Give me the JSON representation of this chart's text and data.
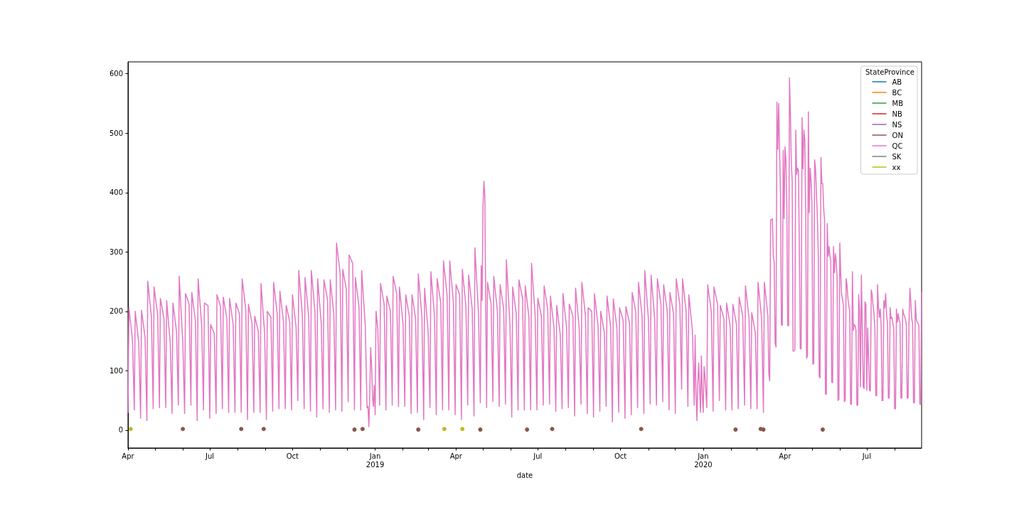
{
  "chart_data": {
    "type": "line",
    "xlabel": "date",
    "legend_title": "StateProvince",
    "legend": "top right",
    "xlim": [
      "2018-04-01",
      "2020-08-31"
    ],
    "xticks": [
      {
        "value": "2018-04-01",
        "label": "Apr"
      },
      {
        "value": "2018-05-01",
        "label": null
      },
      {
        "value": "2018-06-01",
        "label": null
      },
      {
        "value": "2018-07-01",
        "label": "Jul"
      },
      {
        "value": "2018-08-01",
        "label": null
      },
      {
        "value": "2018-09-01",
        "label": null
      },
      {
        "value": "2018-10-01",
        "label": "Oct"
      },
      {
        "value": "2018-11-01",
        "label": null
      },
      {
        "value": "2018-12-01",
        "label": null
      },
      {
        "value": "2019-01-01",
        "label": "Jan\n2019"
      },
      {
        "value": "2019-02-01",
        "label": null
      },
      {
        "value": "2019-03-01",
        "label": null
      },
      {
        "value": "2019-04-01",
        "label": "Apr"
      },
      {
        "value": "2019-05-01",
        "label": null
      },
      {
        "value": "2019-06-01",
        "label": null
      },
      {
        "value": "2019-07-01",
        "label": "Jul"
      },
      {
        "value": "2019-08-01",
        "label": null
      },
      {
        "value": "2019-09-01",
        "label": null
      },
      {
        "value": "2019-10-01",
        "label": "Oct"
      },
      {
        "value": "2019-11-01",
        "label": null
      },
      {
        "value": "2019-12-01",
        "label": null
      },
      {
        "value": "2020-01-01",
        "label": "Jan\n2020"
      },
      {
        "value": "2020-02-01",
        "label": null
      },
      {
        "value": "2020-03-01",
        "label": null
      },
      {
        "value": "2020-04-01",
        "label": "Apr"
      },
      {
        "value": "2020-05-01",
        "label": null
      },
      {
        "value": "2020-06-01",
        "label": null
      },
      {
        "value": "2020-07-01",
        "label": "Jul"
      },
      {
        "value": "2020-08-01",
        "label": null
      }
    ],
    "ylim": [
      -30,
      620
    ],
    "yticks": [
      0,
      100,
      200,
      300,
      400,
      500,
      600
    ],
    "series": [
      {
        "name": "AB",
        "color": "#1f77b4"
      },
      {
        "name": "BC",
        "color": "#ff7f0e"
      },
      {
        "name": "MB",
        "color": "#2ca02c"
      },
      {
        "name": "NB",
        "color": "#d62728"
      },
      {
        "name": "NS",
        "color": "#9467bd"
      },
      {
        "name": "ON",
        "type": "scatter",
        "color": "#8c564b",
        "x": [
          "2018-06-01",
          "2018-08-05",
          "2018-08-30",
          "2018-12-09",
          "2018-12-18",
          "2019-02-18",
          "2019-04-28",
          "2019-06-19",
          "2019-07-17",
          "2019-10-24",
          "2020-02-06",
          "2020-03-05",
          "2020-03-08",
          "2020-05-13"
        ],
        "values": [
          2,
          2,
          2,
          1,
          2,
          1,
          1,
          1,
          2,
          2,
          1,
          2,
          1,
          1
        ]
      },
      {
        "name": "QC",
        "color": "#e377c2",
        "x": [
          "2018-04-01",
          "2018-04-02",
          "2018-04-06",
          "2018-04-08",
          "2018-04-09",
          "2018-04-13",
          "2018-04-15",
          "2018-04-16",
          "2018-04-20",
          "2018-04-22",
          "2018-04-23",
          "2018-04-27",
          "2018-04-29",
          "2018-04-30",
          "2018-05-04",
          "2018-05-06",
          "2018-05-07",
          "2018-05-11",
          "2018-05-13",
          "2018-05-14",
          "2018-05-18",
          "2018-05-20",
          "2018-05-21",
          "2018-05-25",
          "2018-05-27",
          "2018-05-28",
          "2018-06-01",
          "2018-06-03",
          "2018-06-04",
          "2018-06-08",
          "2018-06-10",
          "2018-06-11",
          "2018-06-15",
          "2018-06-17",
          "2018-06-18",
          "2018-06-22",
          "2018-06-24",
          "2018-06-25",
          "2018-06-29",
          "2018-07-01",
          "2018-07-02",
          "2018-07-06",
          "2018-07-08",
          "2018-07-09",
          "2018-07-13",
          "2018-07-15",
          "2018-07-16",
          "2018-07-20",
          "2018-07-22",
          "2018-07-23",
          "2018-07-27",
          "2018-07-29",
          "2018-07-30",
          "2018-08-03",
          "2018-08-05",
          "2018-08-06",
          "2018-08-10",
          "2018-08-12",
          "2018-08-13",
          "2018-08-17",
          "2018-08-19",
          "2018-08-20",
          "2018-08-24",
          "2018-08-26",
          "2018-08-27",
          "2018-08-31",
          "2018-09-02",
          "2018-09-03",
          "2018-09-07",
          "2018-09-09",
          "2018-09-10",
          "2018-09-14",
          "2018-09-16",
          "2018-09-17",
          "2018-09-21",
          "2018-09-23",
          "2018-09-24",
          "2018-09-28",
          "2018-09-30",
          "2018-10-01",
          "2018-10-05",
          "2018-10-07",
          "2018-10-08",
          "2018-10-12",
          "2018-10-14",
          "2018-10-15",
          "2018-10-19",
          "2018-10-21",
          "2018-10-22",
          "2018-10-26",
          "2018-10-28",
          "2018-10-29",
          "2018-11-02",
          "2018-11-04",
          "2018-11-05",
          "2018-11-09",
          "2018-11-11",
          "2018-11-12",
          "2018-11-16",
          "2018-11-18",
          "2018-11-19",
          "2018-11-23",
          "2018-11-25",
          "2018-11-26",
          "2018-11-30",
          "2018-12-02",
          "2018-12-03",
          "2018-12-07",
          "2018-12-09",
          "2018-12-10",
          "2018-12-14",
          "2018-12-16",
          "2018-12-17",
          "2018-12-21",
          "2018-12-23",
          "2018-12-24",
          "2018-12-25",
          "2018-12-26",
          "2018-12-27",
          "2018-12-28",
          "2018-12-29",
          "2018-12-30",
          "2018-12-31",
          "2019-01-01",
          "2019-01-02",
          "2019-01-04",
          "2019-01-06",
          "2019-01-07",
          "2019-01-11",
          "2019-01-13",
          "2019-01-14",
          "2019-01-18",
          "2019-01-20",
          "2019-01-21",
          "2019-01-25",
          "2019-01-27",
          "2019-01-28",
          "2019-02-01",
          "2019-02-03",
          "2019-02-04",
          "2019-02-08",
          "2019-02-10",
          "2019-02-11",
          "2019-02-15",
          "2019-02-17",
          "2019-02-18",
          "2019-02-22",
          "2019-02-24",
          "2019-02-25",
          "2019-03-01",
          "2019-03-03",
          "2019-03-04",
          "2019-03-08",
          "2019-03-10",
          "2019-03-11",
          "2019-03-15",
          "2019-03-17",
          "2019-03-18",
          "2019-03-22",
          "2019-03-24",
          "2019-03-25",
          "2019-03-29",
          "2019-03-31",
          "2019-04-01",
          "2019-04-05",
          "2019-04-07",
          "2019-04-08",
          "2019-04-12",
          "2019-04-14",
          "2019-04-15",
          "2019-04-19",
          "2019-04-21",
          "2019-04-22",
          "2019-04-26",
          "2019-04-28",
          "2019-04-29",
          "2019-04-30",
          "2019-05-01",
          "2019-05-02",
          "2019-05-03",
          "2019-05-05",
          "2019-05-06",
          "2019-05-10",
          "2019-05-12",
          "2019-05-13",
          "2019-05-17",
          "2019-05-19",
          "2019-05-20",
          "2019-05-24",
          "2019-05-26",
          "2019-05-27",
          "2019-05-31",
          "2019-06-02",
          "2019-06-03",
          "2019-06-07",
          "2019-06-09",
          "2019-06-10",
          "2019-06-14",
          "2019-06-16",
          "2019-06-17",
          "2019-06-21",
          "2019-06-23",
          "2019-06-24",
          "2019-06-28",
          "2019-06-30",
          "2019-07-01",
          "2019-07-05",
          "2019-07-07",
          "2019-07-08",
          "2019-07-12",
          "2019-07-14",
          "2019-07-15",
          "2019-07-19",
          "2019-07-21",
          "2019-07-22",
          "2019-07-26",
          "2019-07-28",
          "2019-07-29",
          "2019-08-02",
          "2019-08-04",
          "2019-08-05",
          "2019-08-09",
          "2019-08-11",
          "2019-08-12",
          "2019-08-16",
          "2019-08-18",
          "2019-08-19",
          "2019-08-23",
          "2019-08-25",
          "2019-08-26",
          "2019-08-30",
          "2019-09-01",
          "2019-09-02",
          "2019-09-06",
          "2019-09-08",
          "2019-09-09",
          "2019-09-13",
          "2019-09-15",
          "2019-09-16",
          "2019-09-20",
          "2019-09-22",
          "2019-09-23",
          "2019-09-27",
          "2019-09-29",
          "2019-09-30",
          "2019-10-04",
          "2019-10-06",
          "2019-10-07",
          "2019-10-11",
          "2019-10-13",
          "2019-10-14",
          "2019-10-18",
          "2019-10-20",
          "2019-10-21",
          "2019-10-25",
          "2019-10-27",
          "2019-10-28",
          "2019-11-01",
          "2019-11-03",
          "2019-11-04",
          "2019-11-08",
          "2019-11-10",
          "2019-11-11",
          "2019-11-15",
          "2019-11-17",
          "2019-11-18",
          "2019-11-22",
          "2019-11-24",
          "2019-11-25",
          "2019-11-29",
          "2019-12-01",
          "2019-12-02",
          "2019-12-06",
          "2019-12-08",
          "2019-12-09",
          "2019-12-13",
          "2019-12-15",
          "2019-12-16",
          "2019-12-20",
          "2019-12-22",
          "2019-12-23",
          "2019-12-24",
          "2019-12-25",
          "2019-12-26",
          "2019-12-27",
          "2019-12-29",
          "2019-12-30",
          "2019-12-31",
          "2020-01-01",
          "2020-01-02",
          "2020-01-03",
          "2020-01-05",
          "2020-01-06",
          "2020-01-10",
          "2020-01-12",
          "2020-01-13",
          "2020-01-17",
          "2020-01-19",
          "2020-01-20",
          "2020-01-24",
          "2020-01-26",
          "2020-01-27",
          "2020-01-31",
          "2020-02-02",
          "2020-02-03",
          "2020-02-07",
          "2020-02-09",
          "2020-02-10",
          "2020-02-14",
          "2020-02-16",
          "2020-02-17",
          "2020-02-21",
          "2020-02-23",
          "2020-02-24",
          "2020-02-28",
          "2020-03-01",
          "2020-03-02",
          "2020-03-06",
          "2020-03-08",
          "2020-03-09",
          "2020-03-13",
          "2020-03-14",
          "2020-03-15",
          "2020-03-16",
          "2020-03-17",
          "2020-03-18",
          "2020-03-19",
          "2020-03-20",
          "2020-03-21",
          "2020-03-22",
          "2020-03-23",
          "2020-03-24",
          "2020-03-25",
          "2020-03-26",
          "2020-03-27",
          "2020-03-28",
          "2020-03-29",
          "2020-03-30",
          "2020-03-31",
          "2020-04-01",
          "2020-04-02",
          "2020-04-03",
          "2020-04-04",
          "2020-04-05",
          "2020-04-06",
          "2020-04-07",
          "2020-04-08",
          "2020-04-09",
          "2020-04-10",
          "2020-04-11",
          "2020-04-12",
          "2020-04-13",
          "2020-04-14",
          "2020-04-15",
          "2020-04-16",
          "2020-04-17",
          "2020-04-18",
          "2020-04-19",
          "2020-04-20",
          "2020-04-21",
          "2020-04-22",
          "2020-04-23",
          "2020-04-24",
          "2020-04-25",
          "2020-04-26",
          "2020-04-27",
          "2020-04-28",
          "2020-04-29",
          "2020-04-30",
          "2020-05-01",
          "2020-05-02",
          "2020-05-03",
          "2020-05-04",
          "2020-05-05",
          "2020-05-06",
          "2020-05-07",
          "2020-05-08",
          "2020-05-09",
          "2020-05-10",
          "2020-05-11",
          "2020-05-12",
          "2020-05-13",
          "2020-05-14",
          "2020-05-15",
          "2020-05-16",
          "2020-05-17",
          "2020-05-18",
          "2020-05-19",
          "2020-05-20",
          "2020-05-21",
          "2020-05-22",
          "2020-05-23",
          "2020-05-24",
          "2020-05-25",
          "2020-05-26",
          "2020-05-27",
          "2020-05-28",
          "2020-05-29",
          "2020-05-30",
          "2020-05-31",
          "2020-06-01",
          "2020-06-02",
          "2020-06-03",
          "2020-06-04",
          "2020-06-05",
          "2020-06-06",
          "2020-06-07",
          "2020-06-08",
          "2020-06-09",
          "2020-06-10",
          "2020-06-11",
          "2020-06-12",
          "2020-06-13",
          "2020-06-14",
          "2020-06-15",
          "2020-06-16",
          "2020-06-17",
          "2020-06-18",
          "2020-06-19",
          "2020-06-20",
          "2020-06-21",
          "2020-06-22",
          "2020-06-23",
          "2020-06-24",
          "2020-06-25",
          "2020-06-26",
          "2020-06-27",
          "2020-06-28",
          "2020-06-29",
          "2020-06-30",
          "2020-07-01",
          "2020-07-02",
          "2020-07-03",
          "2020-07-04",
          "2020-07-05",
          "2020-07-06",
          "2020-07-07",
          "2020-07-08",
          "2020-07-09",
          "2020-07-10",
          "2020-07-11",
          "2020-07-12",
          "2020-07-13",
          "2020-07-14",
          "2020-07-15",
          "2020-07-16",
          "2020-07-17",
          "2020-07-18",
          "2020-07-19",
          "2020-07-20",
          "2020-07-21",
          "2020-07-22",
          "2020-07-23",
          "2020-07-24",
          "2020-07-25",
          "2020-07-26",
          "2020-07-27",
          "2020-07-28",
          "2020-07-29",
          "2020-07-30",
          "2020-07-31",
          "2020-08-01",
          "2020-08-02",
          "2020-08-03",
          "2020-08-04",
          "2020-08-05",
          "2020-08-06",
          "2020-08-07",
          "2020-08-08",
          "2020-08-09",
          "2020-08-10",
          "2020-08-11",
          "2020-08-12",
          "2020-08-13",
          "2020-08-14",
          "2020-08-15",
          "2020-08-16",
          "2020-08-17",
          "2020-08-18",
          "2020-08-19",
          "2020-08-20",
          "2020-08-21",
          "2020-08-22",
          "2020-08-23",
          "2020-08-24",
          "2020-08-25",
          "2020-08-26",
          "2020-08-27",
          "2020-08-28",
          "2020-08-29",
          "2020-08-30",
          "2020-08-31"
        ],
        "values": [
          30,
          206,
          152,
          34,
          200,
          147,
          20,
          202,
          156,
          16,
          251,
          192,
          36,
          241,
          194,
          38,
          222,
          188,
          38,
          218,
          147,
          28,
          214,
          166,
          42,
          259,
          147,
          28,
          230,
          212,
          42,
          232,
          184,
          16,
          255,
          176,
          34,
          214,
          210,
          20,
          178,
          162,
          28,
          228,
          208,
          36,
          224,
          188,
          30,
          222,
          178,
          30,
          214,
          196,
          30,
          255,
          204,
          18,
          212,
          180,
          30,
          192,
          166,
          30,
          247,
          164,
          18,
          200,
          190,
          32,
          249,
          196,
          36,
          234,
          182,
          36,
          210,
          182,
          34,
          228,
          174,
          50,
          269,
          194,
          36,
          257,
          192,
          32,
          269,
          200,
          22,
          255,
          180,
          36,
          253,
          220,
          30,
          253,
          196,
          34,
          315,
          265,
          32,
          271,
          236,
          48,
          295,
          281,
          34,
          257,
          208,
          34,
          269,
          176,
          38,
          40,
          6,
          60,
          139,
          111,
          58,
          40,
          75,
          26,
          200,
          170,
          42,
          247,
          212,
          34,
          226,
          200,
          42,
          259,
          230,
          40,
          241,
          180,
          40,
          228,
          192,
          28,
          228,
          188,
          30,
          263,
          192,
          18,
          239,
          164,
          38,
          267,
          192,
          26,
          255,
          214,
          34,
          285,
          228,
          34,
          285,
          216,
          26,
          245,
          228,
          18,
          271,
          208,
          42,
          261,
          204,
          24,
          307,
          196,
          46,
          277,
          218,
          378,
          419,
          396,
          38,
          249,
          212,
          48,
          259,
          200,
          40,
          245,
          204,
          44,
          287,
          178,
          22,
          241,
          196,
          34,
          253,
          222,
          34,
          243,
          192,
          34,
          281,
          194,
          34,
          222,
          192,
          42,
          243,
          204,
          44,
          226,
          172,
          32,
          210,
          160,
          36,
          230,
          172,
          38,
          212,
          192,
          24,
          239,
          172,
          44,
          249,
          192,
          28,
          206,
          200,
          22,
          230,
          176,
          32,
          200,
          164,
          40,
          226,
          174,
          14,
          221,
          172,
          30,
          206,
          184,
          20,
          208,
          180,
          26,
          232,
          198,
          38,
          249,
          192,
          28,
          269,
          188,
          44,
          261,
          188,
          42,
          255,
          212,
          48,
          245,
          200,
          34,
          232,
          196,
          28,
          255,
          212,
          69,
          255,
          200,
          40,
          228,
          168,
          42,
          160,
          60,
          16,
          80,
          113,
          30,
          125,
          60,
          30,
          107,
          90,
          38,
          245,
          200,
          32,
          241,
          212,
          50,
          210,
          188,
          34,
          214,
          176,
          34,
          212,
          178,
          36,
          224,
          192,
          42,
          243,
          188,
          36,
          198,
          164,
          36,
          249,
          188,
          30,
          249,
          192,
          95,
          83,
          354,
          354,
          356,
          293,
          283,
          147,
          140,
          552,
          473,
          550,
          470,
          400,
          178,
          176,
          471,
          356,
          477,
          455,
          382,
          176,
          176,
          593,
          536,
          450,
          420,
          133,
          133,
          135,
          505,
          431,
          441,
          437,
          300,
          137,
          137,
          526,
          440,
          505,
          490,
          370,
          121,
          125,
          536,
          366,
          441,
          420,
          382,
          111,
          112,
          455,
          440,
          400,
          360,
          300,
          91,
          88,
          459,
          415,
          415,
          374,
          354,
          61,
          60,
          348,
          293,
          309,
          293,
          285,
          81,
          80,
          309,
          265,
          297,
          285,
          255,
          50,
          52,
          315,
          263,
          228,
          220,
          210,
          48,
          50,
          255,
          245,
          222,
          210,
          200,
          44,
          44,
          267,
          168,
          178,
          176,
          168,
          42,
          42,
          228,
          200,
          73,
          261,
          176,
          73,
          70,
          216,
          212,
          67,
          172,
          120,
          67,
          66,
          236,
          228,
          210,
          196,
          172,
          58,
          58,
          245,
          208,
          190,
          204,
          176,
          50,
          50,
          218,
          206,
          230,
          196,
          180,
          54,
          54,
          206,
          188,
          190,
          180,
          172,
          36,
          36,
          204,
          182,
          196,
          186,
          180,
          54,
          54,
          204,
          196,
          192,
          186,
          178,
          54,
          54,
          182,
          239,
          216,
          188,
          180,
          46,
          46,
          218,
          188,
          182,
          180,
          176,
          44,
          44,
          232
        ]
      },
      {
        "name": "SK",
        "color": "#7f7f7f"
      },
      {
        "name": "xx",
        "type": "scatter",
        "color": "#bcbd22",
        "x": [
          "2018-04-04",
          "2019-03-19",
          "2019-04-08"
        ],
        "values": [
          2,
          2,
          2
        ]
      }
    ]
  }
}
